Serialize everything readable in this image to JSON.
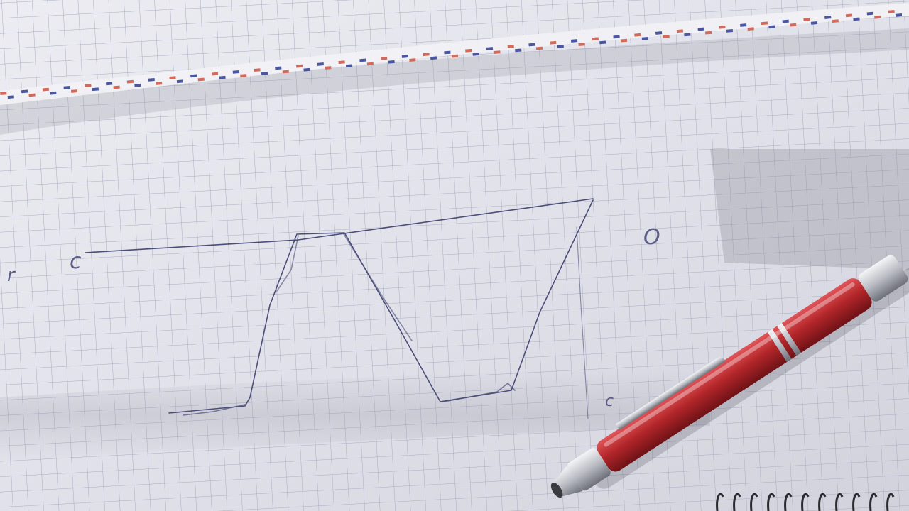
{
  "scene": {
    "description": "",
    "handwritten_marks": {
      "left_edge_mark": "r",
      "left_mark": "c",
      "right_mark": "O",
      "pen_tip_mark": "c"
    },
    "colors": {
      "paper": "#e6e6ee",
      "grid_line": "#a9adc0",
      "pen_ink": "#4a4e78",
      "pen_body": "#b3262a",
      "pen_chrome": "#c9cbd1",
      "ribbon_red": "#d26a5c",
      "ribbon_blue": "#4a57a0",
      "shadow": "#9a9aa6",
      "spiral": "#2a2a30"
    },
    "icons": [
      "graph-paper-sheet",
      "ballpoint-pen",
      "spiral-binding",
      "striped-ribbon"
    ]
  }
}
